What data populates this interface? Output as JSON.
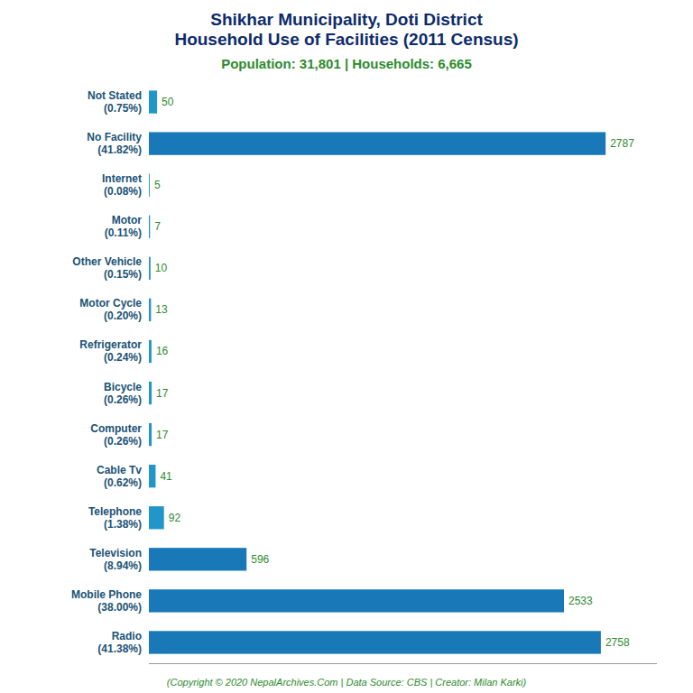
{
  "chart_data": {
    "type": "bar",
    "orientation": "horizontal",
    "title": "Shikhar Municipality, Doti District\nHousehold Use of Facilities (2011 Census)",
    "subtitle": "Population: 31,801 | Households: 6,665",
    "annotations": [
      "(Copyright © 2020 NepalArchives.Com | Data Source: CBS | Creator: Milan Karki)"
    ],
    "categories": [
      "Radio\n(41.38%)",
      "Mobile Phone\n(38.00%)",
      "Television\n(8.94%)",
      "Telephone\n(1.38%)",
      "Cable Tv\n(0.62%)",
      "Computer\n(0.26%)",
      "Bicycle\n(0.26%)",
      "Refrigerator\n(0.24%)",
      "Motor Cycle\n(0.20%)",
      "Other Vehicle\n(0.15%)",
      "Motor\n(0.11%)",
      "Internet\n(0.08%)",
      "No Facility\n(41.82%)",
      "Not Stated\n(0.75%)"
    ],
    "values": [
      2758,
      2533,
      596,
      92,
      41,
      17,
      17,
      16,
      13,
      10,
      7,
      5,
      2787,
      50
    ],
    "colors": [
      "#1878b8",
      "#1878b8",
      "#1878b8",
      "#2196c8",
      "#2196c8",
      "#2196c8",
      "#2196c8",
      "#2196c8",
      "#2196c8",
      "#2196c8",
      "#2196c8",
      "#2196c8",
      "#1878b8",
      "#2196c8"
    ],
    "xlim": [
      0,
      3100
    ],
    "tick_labels": "y",
    "data_labels": true,
    "grid": false
  }
}
